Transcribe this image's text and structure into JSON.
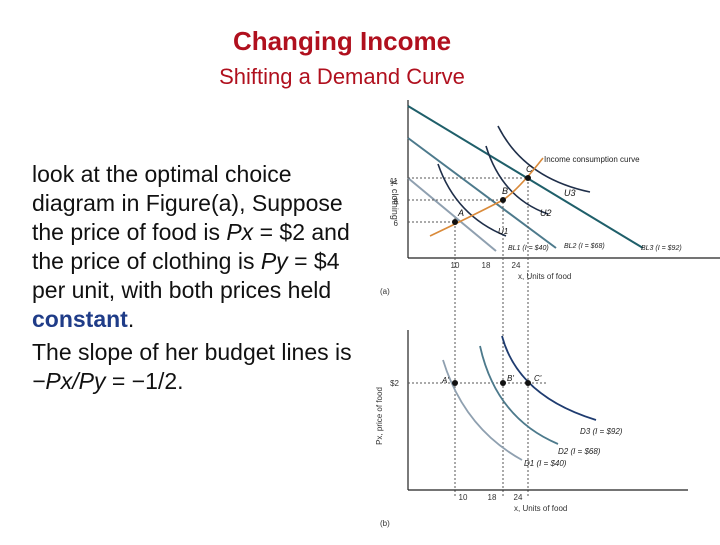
{
  "slide": {
    "title": "Changing Income",
    "subtitle": "Shifting a Demand Curve"
  },
  "body": {
    "p1_intro": "look at the optimal choice diagram in Figure(a), Suppose the price of food is ",
    "px_sym": "Px",
    "px_val": " = $2 and the price of clothing is ",
    "py_sym": "Py",
    "py_val": " = $4 per unit, with both prices held ",
    "keyword": "constant",
    "p1_end": ".",
    "p2_start": "The slope of her budget lines is ",
    "slope_expr": "−Px/Py",
    "slope_val": " = −1/2."
  },
  "figure_a": {
    "y_axis_label": "y, clothing",
    "y_ticks": [
      "11",
      "8",
      "6"
    ],
    "x_ticks": [
      "10",
      "18",
      "24"
    ],
    "x_axis_label": "x, Units of food",
    "points": [
      "A",
      "B",
      "C"
    ],
    "curves": [
      "U1",
      "U2",
      "U3"
    ],
    "icc_label": "Income consumption curve",
    "budget_lines": [
      "BL1 (I = $40)",
      "BL2 (I = $68)",
      "BL3 (I = $92)"
    ],
    "panel_label": "(a)"
  },
  "figure_b": {
    "y_axis_label": "Px, price of food",
    "y_tick": "$2",
    "x_ticks": [
      "10",
      "18",
      "24"
    ],
    "x_axis_label": "x, Units of food",
    "points": [
      "A'",
      "B'",
      "C'"
    ],
    "curves": [
      "D3 (I = $92)",
      "D2 (I = $68)",
      "D1 (I = $40)"
    ],
    "panel_label": "(b)"
  },
  "colors": {
    "title": "#b0101e",
    "keyword": "#1f3c88",
    "bl1": "#8fa0b0",
    "bl2": "#4d7a8c",
    "bl3": "#1f5f6a",
    "icc": "#d98a3a",
    "curve": "#1f2f4a"
  }
}
